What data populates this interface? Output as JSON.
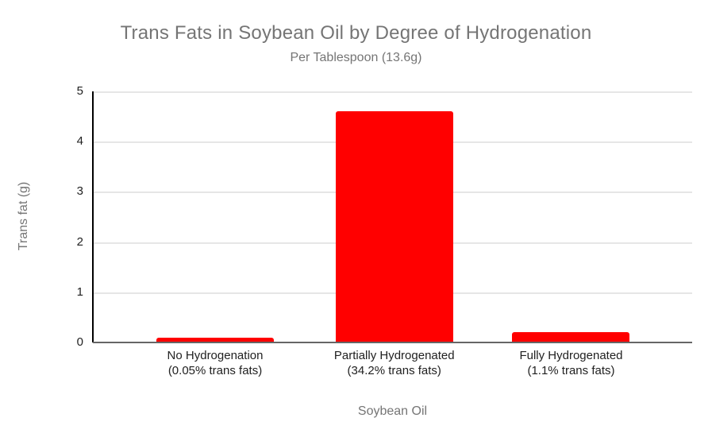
{
  "chart_data": {
    "type": "bar",
    "title": "Trans Fats in Soybean Oil by Degree of Hydrogenation",
    "subtitle": "Per Tablespoon (13.6g)",
    "xlabel": "Soybean Oil",
    "ylabel": "Trans fat (g)",
    "categories": [
      {
        "line1": "No Hydrogenation",
        "line2": "(0.05% trans fats)"
      },
      {
        "line1": "Partially Hydrogenated",
        "line2": "(34.2% trans fats)"
      },
      {
        "line1": "Fully Hydrogenated",
        "line2": "(1.1% trans fats)"
      }
    ],
    "values": [
      0.1,
      4.6,
      0.2
    ],
    "ylim": [
      0,
      5
    ],
    "yticks": [
      0,
      1,
      2,
      3,
      4,
      5
    ],
    "grid": "on",
    "legend": "none",
    "colors": {
      "bar": "#ff0000",
      "title_text": "#757575",
      "axis_tick_text": "#212121",
      "gridline": "#e6e6e6",
      "x_axis_line": "#666666",
      "y_axis_line": "#000000",
      "background": "#ffffff"
    }
  }
}
